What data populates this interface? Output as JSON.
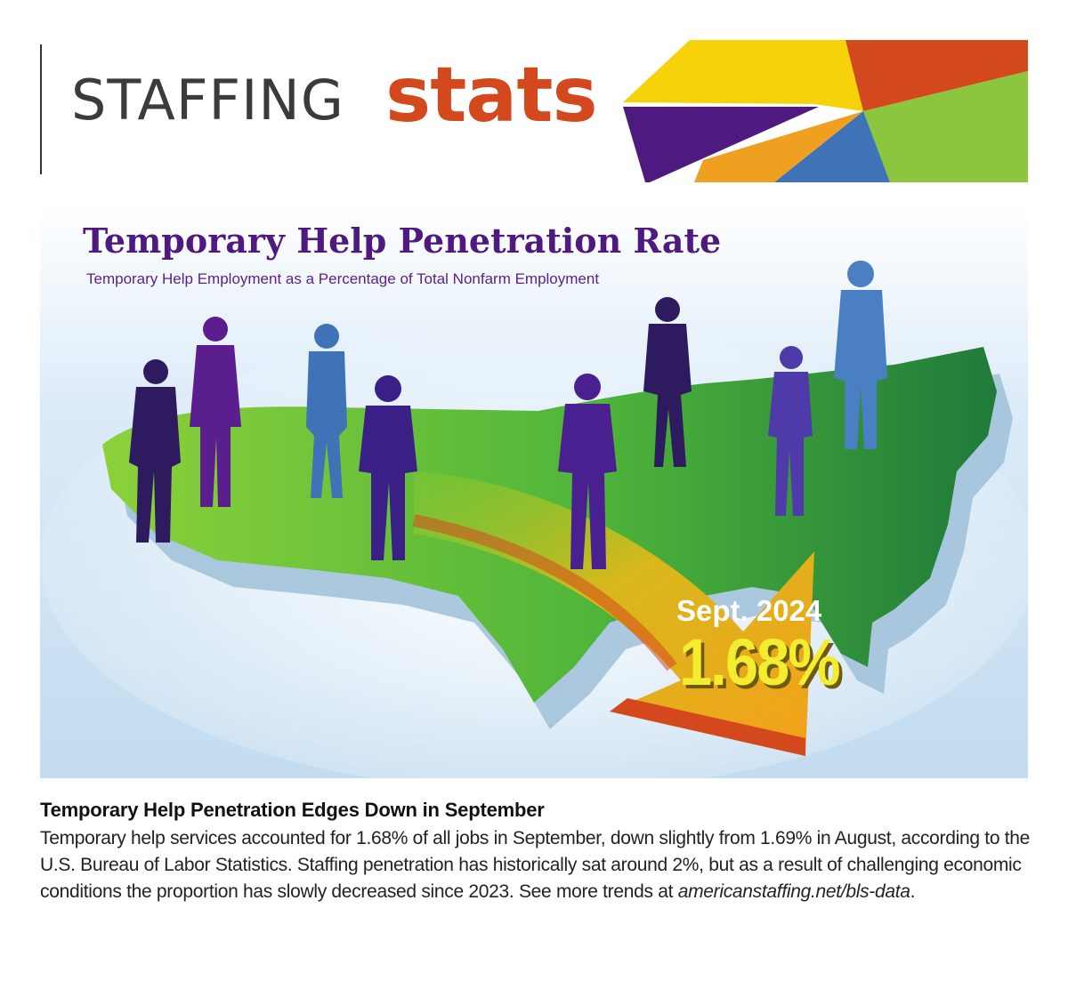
{
  "header": {
    "brand_light": "STAFFING",
    "brand_bold": "stats"
  },
  "colors": {
    "brand_orange": "#d4481e",
    "title_purple": "#4e1a80",
    "stat_yellow": "#f4ec2e",
    "arrow_orange": "#f0a020",
    "map_green": "#3aa63a",
    "sky_blue": "#cfe3f4"
  },
  "hero": {
    "title": "Temporary Help Penetration Rate",
    "subtitle": "Temporary Help Employment as a Percentage of Total Nonfarm Employment",
    "stat_label": "Sept. 2024",
    "stat_value": "1.68%"
  },
  "article": {
    "headline": "Temporary Help Penetration Edges Down in September",
    "body": "Temporary help services accounted for 1.68% of all jobs in September, down slightly from 1.69% in August, according to the U.S. Bureau of Labor Statistics. Staffing penetration has historically sat around 2%, but as a result of challenging economic conditions the proportion has slowly decreased since 2023. See more trends at ",
    "link_text": "americanstaffing.net/bls-data",
    "end_punct": "."
  },
  "icons": [
    "pie-chart-graphic",
    "us-map-graphic",
    "person-silhouette-icon",
    "arrow-graphic"
  ]
}
